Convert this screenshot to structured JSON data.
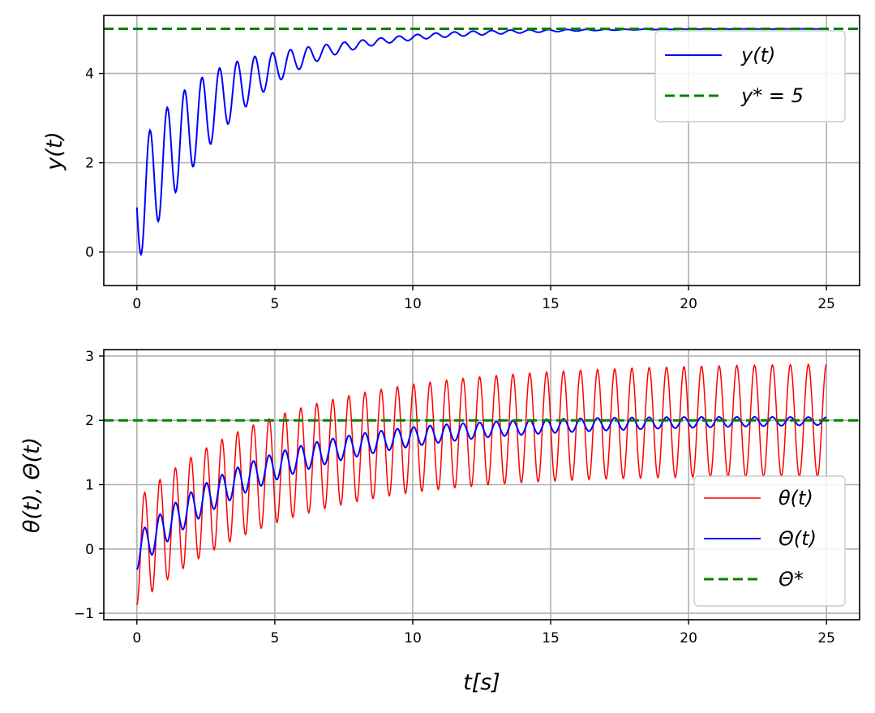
{
  "colors": {
    "blue": "#0000ff",
    "red": "#ff0000",
    "green": "#008000"
  },
  "chart_data": [
    {
      "type": "line",
      "title": "",
      "xlabel": "",
      "ylabel": "y(t)",
      "xlim": [
        -1.2,
        26.2
      ],
      "ylim": [
        -0.75,
        5.3
      ],
      "xticks": [
        0,
        5,
        10,
        15,
        20,
        25
      ],
      "yticks": [
        0,
        2,
        4
      ],
      "xtick_labels": [
        "0",
        "5",
        "10",
        "15",
        "20",
        "25"
      ],
      "ytick_labels": [
        "0",
        "2",
        "4"
      ],
      "grid": true,
      "legend": "top-right",
      "series": [
        {
          "name": "y(t)",
          "style": "solid",
          "color": "blue",
          "model": {
            "t_start": 0,
            "t_end": 25,
            "base_start": 1,
            "base_end": 5,
            "tau": 3.3,
            "amp_start": 1.25,
            "amp_tau": 3.6,
            "freq_start": 1.6,
            "freq_end": 1.35,
            "phase": 1.5708,
            "amp_mod": 0.35,
            "samples": 1000
          }
        },
        {
          "name": "y* = 5",
          "style": "dashed",
          "color": "green",
          "y": 5
        }
      ]
    },
    {
      "type": "line",
      "title": "",
      "xlabel": "t[s]",
      "ylabel": "θ(t), Θ(t)",
      "xlim": [
        -1.2,
        26.2
      ],
      "ylim": [
        -1.1,
        3.1
      ],
      "xticks": [
        0,
        5,
        10,
        15,
        20,
        25
      ],
      "yticks": [
        -1,
        0,
        1,
        2,
        3
      ],
      "xtick_labels": [
        "0",
        "5",
        "10",
        "15",
        "20",
        "25"
      ],
      "ytick_labels": [
        "−1",
        "0",
        "1",
        "2",
        "3"
      ],
      "grid": true,
      "legend": "lower-right",
      "series": [
        {
          "name": "θ(t)",
          "style": "solid",
          "color": "red",
          "model": {
            "t_start": 0,
            "t_end": 25,
            "base_start": -0.05,
            "base_end": 2.02,
            "tau": 5.2,
            "amp_start": 0.82,
            "amp_end": 0.87,
            "freq_start": 1.8,
            "freq_end": 1.52,
            "phase": 3.1416,
            "samples": 1400
          }
        },
        {
          "name": "Θ(t)",
          "style": "solid",
          "color": "blue",
          "model": {
            "t_start": 0,
            "t_end": 25,
            "base_start": -0.05,
            "base_end": 2.0,
            "tau": 4.8,
            "amp_start": 0.27,
            "amp_mid": 0.12,
            "amp_end": 0.06,
            "freq_start": 1.8,
            "freq_end": 1.52,
            "phase": 3.1416,
            "samples": 1400
          }
        },
        {
          "name": "Θ*",
          "style": "dashed",
          "color": "green",
          "y": 2
        }
      ]
    }
  ]
}
